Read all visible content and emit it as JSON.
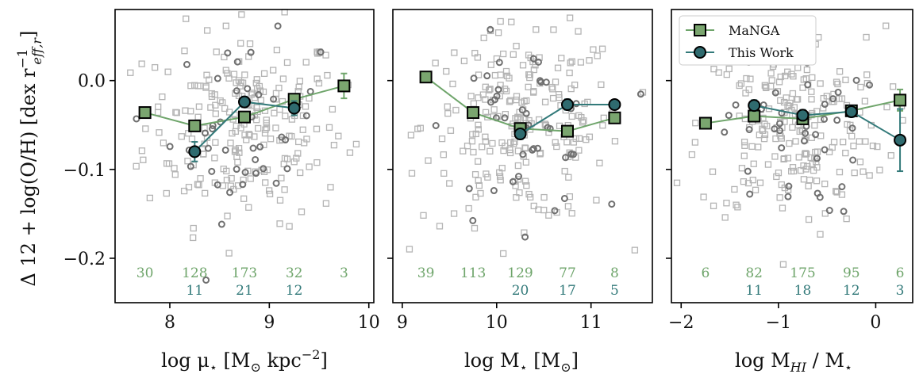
{
  "colors": {
    "manga": "#6fa56b",
    "this_work": "#337a7a",
    "manga_fill": "#7aa56f",
    "this_fill": "#2f6b6f",
    "scatter_sq": "#b4b4b4",
    "scatter_circ": "#707070"
  },
  "chart_data": [
    {
      "type": "scatter",
      "ylabel": "Δ 12 + log(O/H) [dex r",
      "ylabel_sup": "−1",
      "ylabel_sub": "eff,r",
      "ylabel_end": "]",
      "xlabel": "log μ",
      "xlabel_sub": "⋆",
      "xlabel_rest": " [M",
      "xlabel_sub2": "⊙",
      "xlabel_rest2": " kpc",
      "xlabel_sup": "−2",
      "xlabel_end": "]",
      "xlim": [
        7.45,
        10.05
      ],
      "ylim": [
        -0.25,
        0.08
      ],
      "xticks": [
        8,
        9,
        10
      ],
      "yticks": [
        0.0,
        -0.1,
        -0.2
      ],
      "ytick_labels": [
        "0.0",
        "−0.1",
        "−0.2"
      ],
      "show_ytick_labels": true,
      "series": [
        {
          "name": "MaNGA",
          "x": [
            7.75,
            8.25,
            8.75,
            9.25,
            9.75
          ],
          "y": [
            -0.036,
            -0.051,
            -0.041,
            -0.021,
            -0.006
          ],
          "err": [
            0.003,
            0.004,
            0.004,
            0.005,
            0.014
          ],
          "counts": [
            "30",
            "128",
            "173",
            "32",
            "3"
          ]
        },
        {
          "name": "This Work",
          "x": [
            8.25,
            8.75,
            9.25
          ],
          "y": [
            -0.08,
            -0.024,
            -0.031
          ],
          "err": [
            0.011,
            0.006,
            0.008
          ],
          "counts": [
            "11",
            "21",
            "12"
          ]
        }
      ]
    },
    {
      "type": "scatter",
      "xlabel": "log M",
      "xlabel_sub": "⋆",
      "xlabel_rest": " [M",
      "xlabel_sub2": "⊙",
      "xlabel_end": "]",
      "xlim": [
        8.9,
        11.65
      ],
      "ylim": [
        -0.25,
        0.08
      ],
      "xticks": [
        9,
        10,
        11
      ],
      "yticks": [
        0.0,
        -0.1,
        -0.2
      ],
      "show_ytick_labels": false,
      "series": [
        {
          "name": "MaNGA",
          "x": [
            9.25,
            9.75,
            10.25,
            10.75,
            11.25
          ],
          "y": [
            0.004,
            -0.036,
            -0.054,
            -0.057,
            -0.042
          ],
          "err": [
            0.004,
            0.003,
            0.003,
            0.003,
            0.004
          ],
          "counts": [
            "39",
            "113",
            "129",
            "77",
            "8"
          ]
        },
        {
          "name": "This Work",
          "x": [
            10.25,
            10.75,
            11.25
          ],
          "y": [
            -0.06,
            -0.027,
            -0.027
          ],
          "err": [
            0.006,
            0.006,
            0.005
          ],
          "counts": [
            "20",
            "17",
            "5"
          ]
        }
      ]
    },
    {
      "type": "scatter",
      "xlabel": "log M",
      "xlabel_sub": "HI",
      "xlabel_rest": " / M",
      "xlabel_sub2": "⋆",
      "xlim": [
        -2.1,
        0.38
      ],
      "ylim": [
        -0.25,
        0.08
      ],
      "xticks": [
        -2,
        -1,
        0
      ],
      "xtick_labels": [
        "−2",
        "−1",
        "0"
      ],
      "yticks": [
        0.0,
        -0.1,
        -0.2
      ],
      "show_ytick_labels": false,
      "legend": {
        "placement": "top-left",
        "entries": [
          "MaNGA",
          "This Work"
        ]
      },
      "series": [
        {
          "name": "MaNGA",
          "x": [
            -1.75,
            -1.25,
            -0.75,
            -0.25,
            0.25
          ],
          "y": [
            -0.048,
            -0.04,
            -0.043,
            -0.034,
            -0.022
          ],
          "err": [
            0.005,
            0.004,
            0.004,
            0.004,
            0.012
          ],
          "counts": [
            "6",
            "82",
            "175",
            "95",
            "6"
          ]
        },
        {
          "name": "This Work",
          "x": [
            -1.25,
            -0.75,
            -0.25,
            0.25
          ],
          "y": [
            -0.028,
            -0.039,
            -0.035,
            -0.067
          ],
          "err": [
            0.006,
            0.006,
            0.006,
            0.035
          ],
          "counts": [
            "11",
            "18",
            "12",
            "3"
          ]
        }
      ]
    }
  ]
}
